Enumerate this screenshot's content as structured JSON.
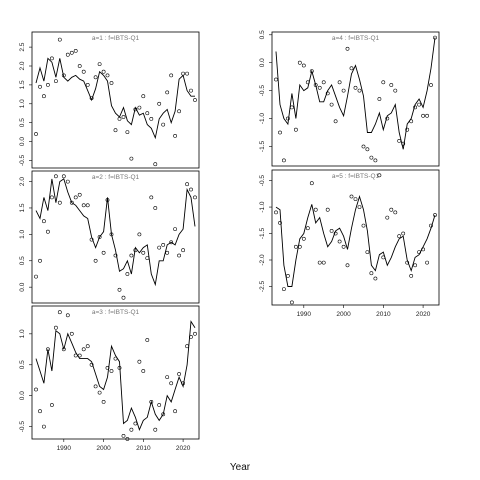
{
  "xaxis_title": "Year",
  "chart_data": [
    {
      "type": "scatter",
      "title": "a=1 : f=IBTS-Q1",
      "xlim": [
        1982,
        2024
      ],
      "ylim": [
        -0.7,
        2.9
      ],
      "yticks": [
        -0.5,
        0.0,
        0.5,
        1.0,
        1.5,
        2.0,
        2.5
      ],
      "ytick_labels": [
        "-0.5",
        "0.0",
        "0.5",
        "1.0",
        "1.5",
        "2.0",
        "2.5"
      ],
      "xticks": [],
      "xtick_labels": [],
      "series": [
        {
          "kind": "line",
          "x": [
            1983,
            1984,
            1985,
            1986,
            1987,
            1988,
            1989,
            1990,
            1991,
            1992,
            1993,
            1994,
            1995,
            1996,
            1997,
            1998,
            1999,
            2000,
            2001,
            2002,
            2003,
            2004,
            2005,
            2006,
            2007,
            2008,
            2009,
            2010,
            2011,
            2012,
            2013,
            2014,
            2015,
            2016,
            2017,
            2018,
            2019,
            2020,
            2021,
            2022,
            2023
          ],
          "y": [
            1.55,
            1.95,
            1.6,
            2.2,
            2.1,
            1.7,
            2.2,
            1.7,
            1.6,
            1.7,
            1.75,
            1.65,
            1.6,
            1.35,
            1.1,
            1.4,
            1.85,
            1.75,
            1.6,
            0.95,
            0.75,
            0.65,
            0.9,
            0.55,
            0.45,
            0.9,
            0.7,
            0.75,
            0.45,
            0.35,
            0.1,
            0.6,
            0.75,
            0.85,
            0.5,
            0.8,
            1.65,
            1.75,
            1.35,
            1.2,
            1.2
          ]
        },
        {
          "kind": "points",
          "x": [
            1983,
            1984,
            1985,
            1986,
            1987,
            1988,
            1989,
            1990,
            1991,
            1992,
            1993,
            1994,
            1995,
            1996,
            1997,
            1998,
            1999,
            2000,
            2001,
            2002,
            2003,
            2004,
            2005,
            2006,
            2007,
            2008,
            2009,
            2010,
            2011,
            2012,
            2013,
            2014,
            2015,
            2016,
            2017,
            2018,
            2019,
            2020,
            2021,
            2022,
            2023
          ],
          "y": [
            0.2,
            1.45,
            1.2,
            1.5,
            2.2,
            1.6,
            2.7,
            1.75,
            2.3,
            2.35,
            2.4,
            2.0,
            1.85,
            1.5,
            1.15,
            1.7,
            2.05,
            1.85,
            1.75,
            1.55,
            0.3,
            0.6,
            0.65,
            0.25,
            -0.45,
            0.85,
            0.9,
            1.2,
            0.75,
            0.6,
            -0.6,
            1.0,
            0.45,
            1.3,
            1.75,
            0.15,
            0.8,
            1.8,
            1.8,
            1.35,
            1.1
          ]
        }
      ]
    },
    {
      "type": "scatter",
      "title": "a=2 : f=IBTS-Q1",
      "xlim": [
        1982,
        2024
      ],
      "ylim": [
        -0.3,
        2.2
      ],
      "yticks": [
        0.0,
        0.5,
        1.0,
        1.5,
        2.0
      ],
      "ytick_labels": [
        "0.0",
        "0.5",
        "1.0",
        "1.5",
        "2.0"
      ],
      "xticks": [],
      "xtick_labels": [],
      "series": [
        {
          "kind": "line",
          "x": [
            1983,
            1984,
            1985,
            1986,
            1987,
            1988,
            1989,
            1990,
            1991,
            1992,
            1993,
            1994,
            1995,
            1996,
            1997,
            1998,
            1999,
            2000,
            2001,
            2002,
            2003,
            2004,
            2005,
            2006,
            2007,
            2008,
            2009,
            2010,
            2011,
            2012,
            2013,
            2014,
            2015,
            2016,
            2017,
            2018,
            2019,
            2020,
            2021,
            2022,
            2023
          ],
          "y": [
            1.45,
            1.3,
            1.7,
            1.45,
            2.05,
            1.6,
            2.0,
            2.05,
            1.8,
            1.6,
            1.55,
            1.45,
            1.35,
            1.3,
            0.95,
            0.75,
            0.95,
            1.05,
            1.7,
            1.0,
            0.7,
            0.3,
            0.35,
            0.5,
            0.25,
            0.75,
            0.65,
            0.75,
            0.8,
            0.25,
            0.05,
            0.5,
            0.5,
            0.8,
            0.85,
            0.8,
            1.0,
            1.1,
            1.85,
            1.7,
            1.15
          ]
        },
        {
          "kind": "points",
          "x": [
            1983,
            1984,
            1985,
            1986,
            1987,
            1988,
            1989,
            1990,
            1991,
            1992,
            1993,
            1994,
            1995,
            1996,
            1997,
            1998,
            1999,
            2000,
            2001,
            2002,
            2003,
            2004,
            2005,
            2006,
            2007,
            2008,
            2009,
            2010,
            2011,
            2012,
            2013,
            2014,
            2015,
            2016,
            2017,
            2018,
            2019,
            2020,
            2021,
            2022,
            2023
          ],
          "y": [
            0.2,
            0.5,
            1.25,
            1.05,
            1.7,
            2.1,
            1.6,
            2.1,
            2.0,
            1.6,
            1.7,
            1.75,
            1.55,
            1.55,
            0.9,
            0.5,
            0.95,
            0.65,
            1.65,
            1.0,
            0.6,
            -0.05,
            -0.2,
            0.25,
            0.6,
            0.7,
            1.0,
            0.65,
            0.55,
            1.7,
            1.5,
            0.75,
            0.8,
            0.65,
            0.85,
            1.1,
            0.6,
            0.7,
            1.95,
            1.85,
            1.7
          ]
        }
      ]
    },
    {
      "type": "scatter",
      "title": "a=3 : f=IBTS-Q1",
      "xlim": [
        1982,
        2024
      ],
      "ylim": [
        -0.7,
        1.45
      ],
      "yticks": [
        -0.5,
        0.0,
        0.5,
        1.0
      ],
      "ytick_labels": [
        "-0.5",
        "0.0",
        "0.5",
        "1.0"
      ],
      "xticks": [
        1990,
        2000,
        2010,
        2020
      ],
      "xtick_labels": [
        "1990",
        "2000",
        "2010",
        "2020"
      ],
      "series": [
        {
          "kind": "line",
          "x": [
            1983,
            1984,
            1985,
            1986,
            1987,
            1988,
            1989,
            1990,
            1991,
            1992,
            1993,
            1994,
            1995,
            1996,
            1997,
            1998,
            1999,
            2000,
            2001,
            2002,
            2003,
            2004,
            2005,
            2006,
            2007,
            2008,
            2009,
            2010,
            2011,
            2012,
            2013,
            2014,
            2015,
            2016,
            2017,
            2018,
            2019,
            2020,
            2021,
            2022,
            2023
          ],
          "y": [
            0.6,
            0.4,
            0.2,
            0.75,
            0.4,
            1.05,
            1.0,
            0.75,
            1.0,
            0.85,
            0.7,
            0.6,
            0.6,
            0.6,
            0.55,
            0.35,
            0.15,
            0.1,
            0.3,
            0.8,
            0.65,
            0.55,
            -0.45,
            -0.4,
            -0.2,
            -0.35,
            -0.55,
            -0.4,
            -0.35,
            -0.1,
            -0.3,
            -0.4,
            -0.3,
            0.0,
            -0.1,
            0.1,
            0.3,
            0.15,
            0.5,
            1.2,
            1.1
          ]
        },
        {
          "kind": "points",
          "x": [
            1983,
            1984,
            1985,
            1986,
            1987,
            1988,
            1989,
            1990,
            1991,
            1992,
            1993,
            1994,
            1995,
            1996,
            1997,
            1998,
            1999,
            2000,
            2001,
            2002,
            2003,
            2004,
            2005,
            2006,
            2007,
            2008,
            2009,
            2010,
            2011,
            2012,
            2013,
            2014,
            2015,
            2016,
            2017,
            2018,
            2019,
            2020,
            2021,
            2022,
            2023
          ],
          "y": [
            0.1,
            -0.25,
            -0.5,
            0.75,
            -0.15,
            1.1,
            1.35,
            0.75,
            1.3,
            1.0,
            0.65,
            0.65,
            0.75,
            0.8,
            0.5,
            0.15,
            0.05,
            -0.1,
            0.45,
            0.4,
            0.6,
            0.45,
            -0.65,
            -0.7,
            -0.55,
            -0.45,
            0.55,
            0.4,
            0.9,
            -0.1,
            -0.55,
            -0.15,
            -0.3,
            0.3,
            0.2,
            -0.25,
            0.35,
            0.2,
            0.8,
            0.95,
            1.0
          ]
        }
      ]
    },
    {
      "type": "scatter",
      "title": "a=4 : f=IBTS-Q1",
      "xlim": [
        1982,
        2024
      ],
      "ylim": [
        -1.85,
        0.55
      ],
      "yticks": [
        -1.5,
        -1.0,
        -0.5,
        0.0,
        0.5
      ],
      "ytick_labels": [
        "-1.5",
        "-1.0",
        "-0.5",
        "0.0",
        "0.5"
      ],
      "xticks": [],
      "xtick_labels": [],
      "series": [
        {
          "kind": "line",
          "x": [
            1983,
            1984,
            1985,
            1986,
            1987,
            1988,
            1989,
            1990,
            1991,
            1992,
            1993,
            1994,
            1995,
            1996,
            1997,
            1998,
            1999,
            2000,
            2001,
            2002,
            2003,
            2004,
            2005,
            2006,
            2007,
            2008,
            2009,
            2010,
            2011,
            2012,
            2013,
            2014,
            2015,
            2016,
            2017,
            2018,
            2019,
            2020,
            2021,
            2022,
            2023
          ],
          "y": [
            0.2,
            -0.75,
            -1.0,
            -1.1,
            -0.55,
            -1.0,
            -0.4,
            -0.5,
            -0.45,
            -0.15,
            -0.4,
            -0.7,
            -0.7,
            -0.5,
            -0.4,
            -0.6,
            -0.8,
            -0.95,
            -0.6,
            -0.2,
            -0.05,
            -0.3,
            -0.6,
            -1.25,
            -1.25,
            -1.1,
            -0.9,
            -1.2,
            -0.95,
            -0.9,
            -0.75,
            -1.25,
            -1.55,
            -1.1,
            -1.0,
            -0.75,
            -0.65,
            -0.8,
            -0.5,
            -0.1,
            0.45
          ]
        },
        {
          "kind": "points",
          "x": [
            1983,
            1984,
            1985,
            1986,
            1987,
            1988,
            1989,
            1990,
            1991,
            1992,
            1993,
            1994,
            1995,
            1996,
            1997,
            1998,
            1999,
            2000,
            2001,
            2002,
            2003,
            2004,
            2005,
            2006,
            2007,
            2008,
            2009,
            2010,
            2011,
            2012,
            2013,
            2014,
            2015,
            2016,
            2017,
            2018,
            2019,
            2020,
            2021,
            2022,
            2023
          ],
          "y": [
            -0.3,
            -1.25,
            -1.75,
            -1.0,
            -0.8,
            -1.2,
            0.0,
            -0.05,
            -0.35,
            -0.15,
            -0.4,
            -0.45,
            -0.35,
            -0.55,
            -0.75,
            -1.05,
            -0.35,
            -0.5,
            0.25,
            -0.1,
            -0.45,
            -0.5,
            -1.5,
            -1.55,
            -1.7,
            -1.75,
            -0.65,
            -0.35,
            -1.0,
            -0.4,
            -0.5,
            -1.4,
            -1.45,
            -1.2,
            -1.05,
            -0.8,
            -0.75,
            -0.95,
            -0.95,
            -0.4,
            0.45
          ]
        }
      ]
    },
    {
      "type": "scatter",
      "title": "a=5 : f=IBTS-Q1",
      "xlim": [
        1982,
        2024
      ],
      "ylim": [
        -2.85,
        -0.3
      ],
      "yticks": [
        -2.5,
        -2.0,
        -1.5,
        -1.0,
        -0.5
      ],
      "ytick_labels": [
        "-2.5",
        "-2.0",
        "-1.5",
        "-1.0",
        "-0.5"
      ],
      "xticks": [
        1990,
        2000,
        2010,
        2020
      ],
      "xtick_labels": [
        "1990",
        "2000",
        "2010",
        "2020"
      ],
      "series": [
        {
          "kind": "line",
          "x": [
            1983,
            1984,
            1985,
            1986,
            1987,
            1988,
            1989,
            1990,
            1991,
            1992,
            1993,
            1994,
            1995,
            1996,
            1997,
            1998,
            1999,
            2000,
            2001,
            2002,
            2003,
            2004,
            2005,
            2006,
            2007,
            2008,
            2009,
            2010,
            2011,
            2012,
            2013,
            2014,
            2015,
            2016,
            2017,
            2018,
            2019,
            2020,
            2021,
            2022,
            2023
          ],
          "y": [
            -1.0,
            -1.05,
            -2.1,
            -2.5,
            -2.5,
            -2.0,
            -1.6,
            -1.5,
            -1.2,
            -0.95,
            -1.3,
            -1.2,
            -1.5,
            -1.75,
            -1.65,
            -1.45,
            -1.4,
            -1.55,
            -1.8,
            -1.4,
            -1.05,
            -0.8,
            -1.05,
            -1.45,
            -2.1,
            -2.2,
            -1.9,
            -1.85,
            -2.1,
            -1.95,
            -1.75,
            -1.6,
            -1.55,
            -2.0,
            -2.2,
            -1.95,
            -1.9,
            -1.75,
            -1.6,
            -1.4,
            -1.15
          ]
        },
        {
          "kind": "points",
          "x": [
            1983,
            1984,
            1985,
            1986,
            1987,
            1988,
            1989,
            1990,
            1991,
            1992,
            1993,
            1994,
            1995,
            1996,
            1997,
            1998,
            1999,
            2000,
            2001,
            2002,
            2003,
            2004,
            2005,
            2006,
            2007,
            2008,
            2009,
            2010,
            2011,
            2012,
            2013,
            2014,
            2015,
            2016,
            2017,
            2018,
            2019,
            2020,
            2021,
            2022,
            2023
          ],
          "y": [
            -1.1,
            -1.3,
            -2.55,
            -2.3,
            -2.8,
            -1.75,
            -1.75,
            -1.6,
            -1.4,
            -0.55,
            -1.05,
            -2.05,
            -2.05,
            -1.05,
            -1.45,
            -1.5,
            -1.65,
            -1.75,
            -2.1,
            -0.8,
            -0.85,
            -1.0,
            -1.35,
            -1.85,
            -2.25,
            -2.35,
            -0.4,
            -1.95,
            -1.2,
            -1.05,
            -1.1,
            -1.55,
            -1.5,
            -2.05,
            -2.3,
            -2.1,
            -1.85,
            -1.8,
            -2.05,
            -1.35,
            -1.15
          ]
        }
      ]
    }
  ]
}
